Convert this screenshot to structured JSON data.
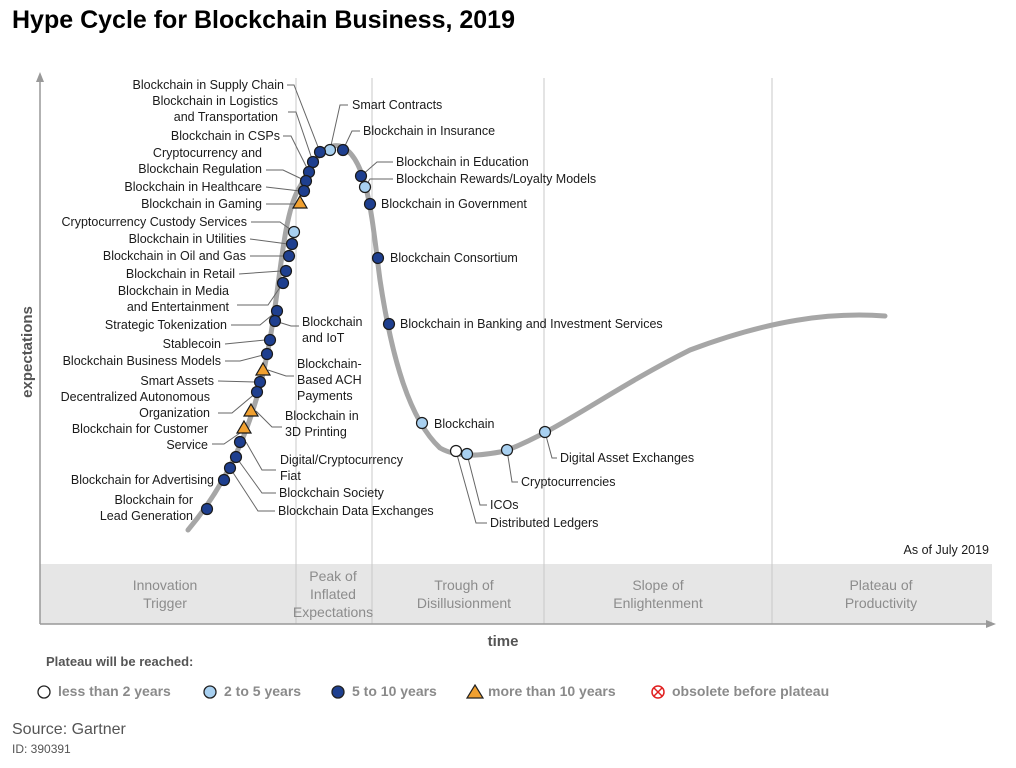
{
  "title": "Hype Cycle for Blockchain Business, 2019",
  "as_of": "As of July 2019",
  "legend": {
    "title": "Plateau will be reached:",
    "items": [
      {
        "label": "less than 2 years",
        "marker": "circle",
        "color": "#ffffff"
      },
      {
        "label": "2 to 5 years",
        "marker": "circle",
        "color": "#a8d0f0"
      },
      {
        "label": "5 to 10 years",
        "marker": "circle",
        "color": "#1e3f8f"
      },
      {
        "label": "more than 10 years",
        "marker": "triangle",
        "color": "#f0a030"
      },
      {
        "label": "obsolete before plateau",
        "marker": "crossed-circle",
        "color": "#e02020"
      }
    ]
  },
  "source": "Source: Gartner",
  "doc_id": "ID: 390391",
  "chart_data": {
    "type": "scatter",
    "title": "Hype Cycle for Blockchain Business, 2019",
    "xlabel": "time",
    "ylabel": "expectations",
    "grid": false,
    "phases": [
      "Innovation Trigger",
      "Peak of Inflated Expectations",
      "Trough of Disillusionment",
      "Slope of Enlightenment",
      "Plateau of Productivity"
    ],
    "curve": "hype-cycle",
    "series": [
      {
        "name": "less than 2 years",
        "color": "#ffffff",
        "marker": "circle",
        "points": [
          {
            "label": "Distributed Ledgers",
            "phase": "Trough of Disillusionment"
          }
        ]
      },
      {
        "name": "2 to 5 years",
        "color": "#a8d0f0",
        "marker": "circle",
        "points": [
          {
            "label": "Smart Contracts",
            "phase": "Peak of Inflated Expectations"
          },
          {
            "label": "Blockchain Rewards/Loyalty Models",
            "phase": "Peak of Inflated Expectations"
          },
          {
            "label": "Cryptocurrency Custody Services",
            "phase": "Innovation Trigger"
          },
          {
            "label": "Blockchain",
            "phase": "Trough of Disillusionment"
          },
          {
            "label": "ICOs",
            "phase": "Trough of Disillusionment"
          },
          {
            "label": "Cryptocurrencies",
            "phase": "Trough of Disillusionment"
          },
          {
            "label": "Digital Asset Exchanges",
            "phase": "Trough of Disillusionment"
          }
        ]
      },
      {
        "name": "5 to 10 years",
        "color": "#1e3f8f",
        "marker": "circle",
        "points": [
          {
            "label": "Blockchain in Supply Chain",
            "phase": "Peak of Inflated Expectations"
          },
          {
            "label": "Blockchain in Logistics and Transportation",
            "phase": "Peak of Inflated Expectations"
          },
          {
            "label": "Blockchain in CSPs",
            "phase": "Innovation Trigger"
          },
          {
            "label": "Cryptocurrency and Blockchain Regulation",
            "phase": "Innovation Trigger"
          },
          {
            "label": "Blockchain in Healthcare",
            "phase": "Innovation Trigger"
          },
          {
            "label": "Blockchain in Insurance",
            "phase": "Peak of Inflated Expectations"
          },
          {
            "label": "Blockchain in Education",
            "phase": "Peak of Inflated Expectations"
          },
          {
            "label": "Blockchain in Government",
            "phase": "Peak of Inflated Expectations"
          },
          {
            "label": "Blockchain Consortium",
            "phase": "Peak of Inflated Expectations"
          },
          {
            "label": "Blockchain in Banking and Investment Services",
            "phase": "Trough of Disillusionment"
          },
          {
            "label": "Blockchain in Utilities",
            "phase": "Innovation Trigger"
          },
          {
            "label": "Blockchain in Oil and Gas",
            "phase": "Innovation Trigger"
          },
          {
            "label": "Blockchain in Retail",
            "phase": "Innovation Trigger"
          },
          {
            "label": "Blockchain in Media and Entertainment",
            "phase": "Innovation Trigger"
          },
          {
            "label": "Strategic Tokenization",
            "phase": "Innovation Trigger"
          },
          {
            "label": "Blockchain and IoT",
            "phase": "Innovation Trigger"
          },
          {
            "label": "Stablecoin",
            "phase": "Innovation Trigger"
          },
          {
            "label": "Blockchain Business Models",
            "phase": "Innovation Trigger"
          },
          {
            "label": "Smart Assets",
            "phase": "Innovation Trigger"
          },
          {
            "label": "Decentralized Autonomous Organization",
            "phase": "Innovation Trigger"
          },
          {
            "label": "Digital/Cryptocurrency Fiat",
            "phase": "Innovation Trigger"
          },
          {
            "label": "Blockchain Society",
            "phase": "Innovation Trigger"
          },
          {
            "label": "Blockchain for Advertising",
            "phase": "Innovation Trigger"
          },
          {
            "label": "Blockchain Data Exchanges",
            "phase": "Innovation Trigger"
          },
          {
            "label": "Blockchain for Lead Generation",
            "phase": "Innovation Trigger"
          }
        ]
      },
      {
        "name": "more than 10 years",
        "color": "#f0a030",
        "marker": "triangle",
        "points": [
          {
            "label": "Blockchain in Gaming",
            "phase": "Innovation Trigger"
          },
          {
            "label": "Blockchain-Based ACH Payments",
            "phase": "Innovation Trigger"
          },
          {
            "label": "Blockchain in 3D Printing",
            "phase": "Innovation Trigger"
          },
          {
            "label": "Blockchain for Customer Service",
            "phase": "Innovation Trigger"
          }
        ]
      }
    ]
  }
}
